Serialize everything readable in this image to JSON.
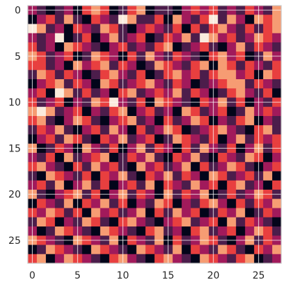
{
  "chart_data": {
    "type": "heatmap",
    "title": "",
    "xlabel": "",
    "ylabel": "",
    "rows": 28,
    "cols": 28,
    "x_ticks": [
      0,
      5,
      10,
      15,
      20,
      25
    ],
    "y_ticks": [
      0,
      5,
      10,
      15,
      20,
      25
    ],
    "x_tick_labels": [
      "0",
      "5",
      "10",
      "15",
      "20",
      "25"
    ],
    "y_tick_labels": [
      "0",
      "5",
      "10",
      "15",
      "20",
      "25"
    ],
    "grid": true,
    "colormap": [
      "#03051a",
      "#4c1d4b",
      "#a11a5b",
      "#e83f3f",
      "#f69c73",
      "#faebdd"
    ],
    "value_range": [
      0,
      5
    ],
    "values": [
      [
        2,
        1,
        0,
        1,
        2,
        0,
        3,
        4,
        3,
        0,
        1,
        3,
        4,
        0,
        1,
        1,
        0,
        2,
        3,
        2,
        3,
        1,
        2,
        1,
        3,
        2,
        1,
        4
      ],
      [
        0,
        2,
        3,
        1,
        4,
        1,
        0,
        3,
        2,
        1,
        5,
        4,
        1,
        1,
        3,
        0,
        4,
        2,
        1,
        3,
        5,
        1,
        4,
        2,
        0,
        4,
        3,
        4
      ],
      [
        5,
        4,
        1,
        2,
        0,
        3,
        2,
        1,
        4,
        3,
        1,
        0,
        2,
        3,
        2,
        1,
        3,
        0,
        3,
        1,
        3,
        4,
        2,
        1,
        3,
        1,
        3,
        4
      ],
      [
        2,
        1,
        2,
        5,
        0,
        1,
        3,
        0,
        2,
        4,
        1,
        2,
        3,
        0,
        1,
        3,
        2,
        4,
        1,
        5,
        4,
        2,
        3,
        1,
        2,
        4,
        3,
        2
      ],
      [
        3,
        1,
        2,
        0,
        4,
        3,
        2,
        1,
        0,
        2,
        3,
        1,
        2,
        1,
        3,
        4,
        0,
        1,
        2,
        3,
        1,
        0,
        2,
        4,
        1,
        3,
        2,
        1
      ],
      [
        4,
        3,
        1,
        2,
        3,
        0,
        1,
        4,
        3,
        2,
        0,
        3,
        1,
        4,
        2,
        1,
        3,
        2,
        1,
        0,
        3,
        4,
        2,
        3,
        0,
        1,
        4,
        2
      ],
      [
        3,
        3,
        1,
        2,
        0,
        4,
        2,
        3,
        4,
        1,
        3,
        2,
        0,
        1,
        4,
        3,
        2,
        1,
        3,
        4,
        0,
        4,
        3,
        1,
        3,
        2,
        1,
        3
      ],
      [
        1,
        4,
        3,
        1,
        3,
        2,
        0,
        1,
        3,
        4,
        2,
        1,
        3,
        0,
        1,
        3,
        4,
        2,
        3,
        1,
        3,
        4,
        4,
        2,
        3,
        0,
        4,
        3
      ],
      [
        0,
        2,
        3,
        4,
        1,
        3,
        2,
        0,
        4,
        3,
        1,
        2,
        3,
        4,
        2,
        1,
        3,
        2,
        0,
        1,
        2,
        3,
        4,
        4,
        1,
        3,
        2,
        1
      ],
      [
        2,
        3,
        0,
        5,
        4,
        1,
        3,
        1,
        2,
        0,
        3,
        4,
        1,
        2,
        3,
        2,
        4,
        1,
        3,
        2,
        0,
        1,
        3,
        4,
        2,
        1,
        3,
        0
      ],
      [
        3,
        1,
        2,
        3,
        0,
        2,
        1,
        4,
        3,
        5,
        2,
        1,
        3,
        0,
        4,
        3,
        2,
        1,
        0,
        3,
        2,
        4,
        1,
        3,
        0,
        2,
        1,
        3
      ],
      [
        4,
        5,
        4,
        1,
        2,
        3,
        0,
        2,
        1,
        3,
        4,
        0,
        2,
        3,
        1,
        2,
        0,
        4,
        3,
        1,
        2,
        3,
        0,
        1,
        4,
        2,
        3,
        2
      ],
      [
        3,
        4,
        1,
        0,
        2,
        4,
        3,
        1,
        0,
        2,
        3,
        4,
        1,
        2,
        0,
        3,
        1,
        2,
        4,
        3,
        0,
        2,
        1,
        3,
        4,
        0,
        2,
        1
      ],
      [
        1,
        3,
        2,
        4,
        1,
        0,
        2,
        3,
        1,
        4,
        2,
        0,
        3,
        1,
        2,
        4,
        3,
        0,
        1,
        2,
        3,
        4,
        2,
        1,
        0,
        3,
        4,
        1
      ],
      [
        0,
        2,
        3,
        1,
        4,
        3,
        1,
        0,
        3,
        2,
        4,
        1,
        2,
        3,
        0,
        1,
        4,
        3,
        2,
        1,
        3,
        0,
        2,
        4,
        1,
        3,
        2,
        3
      ],
      [
        4,
        0,
        1,
        3,
        2,
        0,
        4,
        2,
        1,
        3,
        0,
        2,
        4,
        1,
        3,
        2,
        0,
        3,
        1,
        4,
        2,
        1,
        3,
        0,
        2,
        4,
        1,
        3
      ],
      [
        2,
        1,
        3,
        0,
        4,
        1,
        2,
        3,
        4,
        0,
        1,
        3,
        2,
        4,
        1,
        0,
        3,
        2,
        4,
        1,
        0,
        3,
        2,
        1,
        4,
        3,
        0,
        2
      ],
      [
        3,
        4,
        2,
        1,
        0,
        3,
        1,
        4,
        2,
        3,
        1,
        0,
        4,
        2,
        3,
        1,
        2,
        4,
        0,
        3,
        1,
        2,
        4,
        3,
        1,
        0,
        2,
        3
      ],
      [
        1,
        0,
        4,
        3,
        2,
        1,
        3,
        0,
        3,
        2,
        4,
        1,
        0,
        3,
        2,
        4,
        1,
        3,
        2,
        0,
        4,
        3,
        1,
        2,
        3,
        1,
        4,
        0
      ],
      [
        2,
        3,
        1,
        4,
        0,
        2,
        4,
        1,
        3,
        0,
        2,
        3,
        1,
        4,
        0,
        3,
        2,
        1,
        4,
        2,
        3,
        0,
        3,
        4,
        1,
        2,
        0,
        3
      ],
      [
        4,
        1,
        0,
        2,
        3,
        4,
        1,
        3,
        0,
        2,
        4,
        1,
        3,
        2,
        0,
        4,
        1,
        3,
        2,
        4,
        0,
        1,
        3,
        1,
        2,
        4,
        3,
        1
      ],
      [
        0,
        3,
        2,
        1,
        4,
        0,
        3,
        2,
        4,
        1,
        3,
        0,
        2,
        1,
        4,
        3,
        0,
        2,
        1,
        3,
        4,
        2,
        0,
        3,
        1,
        3,
        2,
        4
      ],
      [
        3,
        2,
        4,
        3,
        1,
        3,
        0,
        4,
        2,
        3,
        1,
        2,
        4,
        0,
        3,
        1,
        4,
        2,
        3,
        0,
        1,
        3,
        2,
        4,
        0,
        1,
        3,
        2
      ],
      [
        1,
        4,
        3,
        0,
        2,
        1,
        4,
        3,
        1,
        0,
        3,
        4,
        2,
        1,
        0,
        2,
        3,
        4,
        1,
        2,
        3,
        0,
        4,
        1,
        3,
        2,
        1,
        0
      ],
      [
        2,
        0,
        1,
        4,
        3,
        2,
        1,
        0,
        4,
        3,
        2,
        1,
        0,
        3,
        4,
        1,
        2,
        0,
        3,
        4,
        1,
        2,
        3,
        0,
        2,
        4,
        3,
        1
      ],
      [
        4,
        3,
        2,
        1,
        0,
        4,
        3,
        2,
        1,
        4,
        0,
        3,
        2,
        1,
        4,
        0,
        3,
        1,
        2,
        4,
        3,
        1,
        0,
        2,
        4,
        1,
        3,
        2
      ],
      [
        0,
        1,
        4,
        3,
        2,
        1,
        0,
        4,
        3,
        2,
        1,
        0,
        4,
        3,
        2,
        1,
        4,
        0,
        3,
        2,
        1,
        4,
        3,
        1,
        0,
        3,
        2,
        4
      ],
      [
        3,
        4,
        0,
        2,
        4,
        3,
        2,
        1,
        0,
        3,
        4,
        2,
        1,
        0,
        3,
        4,
        2,
        1,
        0,
        4,
        3,
        2,
        1,
        3,
        4,
        0,
        1,
        2
      ]
    ]
  }
}
